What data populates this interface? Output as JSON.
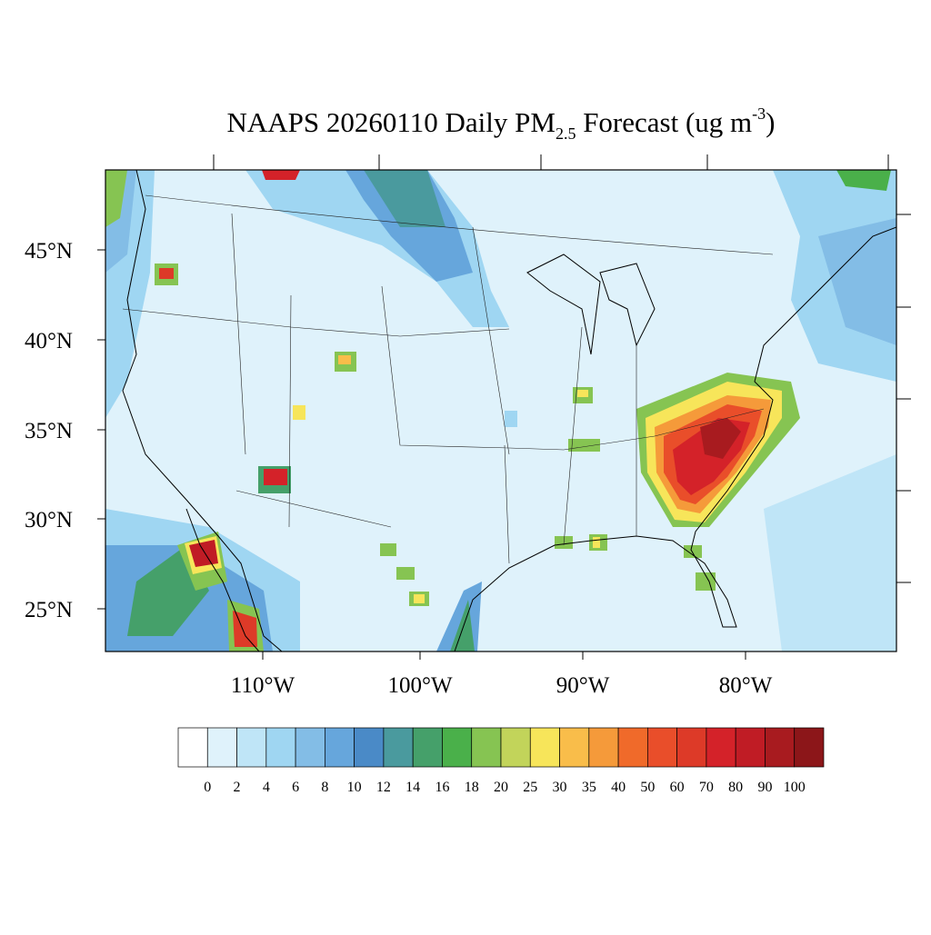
{
  "title": {
    "main": "NAAPS 20260110 Daily PM",
    "subscript": "2.5",
    "middle": " Forecast (ug m",
    "superscript": "-3",
    "end": ")"
  },
  "map": {
    "lat_labels": [
      "45°N",
      "40°N",
      "35°N",
      "30°N",
      "25°N"
    ],
    "lon_labels": [
      "110°W",
      "100°W",
      "90°W",
      "80°W"
    ]
  },
  "colorbar": {
    "levels": [
      0,
      2,
      4,
      6,
      8,
      10,
      12,
      14,
      16,
      18,
      20,
      25,
      30,
      35,
      40,
      50,
      60,
      70,
      80,
      90,
      100
    ],
    "colors": [
      "#ffffff",
      "#dff2fb",
      "#bfe5f7",
      "#9fd6f2",
      "#83bde6",
      "#66a6dc",
      "#4a8ac7",
      "#4a9a9e",
      "#45a06a",
      "#4ab04a",
      "#86c452",
      "#c2d45a",
      "#f7e55a",
      "#f9bd4a",
      "#f59a3a",
      "#f06a2a",
      "#e94e2a",
      "#dd3a28",
      "#d42229",
      "#c01c25",
      "#a81b1f",
      "#8c1619"
    ]
  }
}
